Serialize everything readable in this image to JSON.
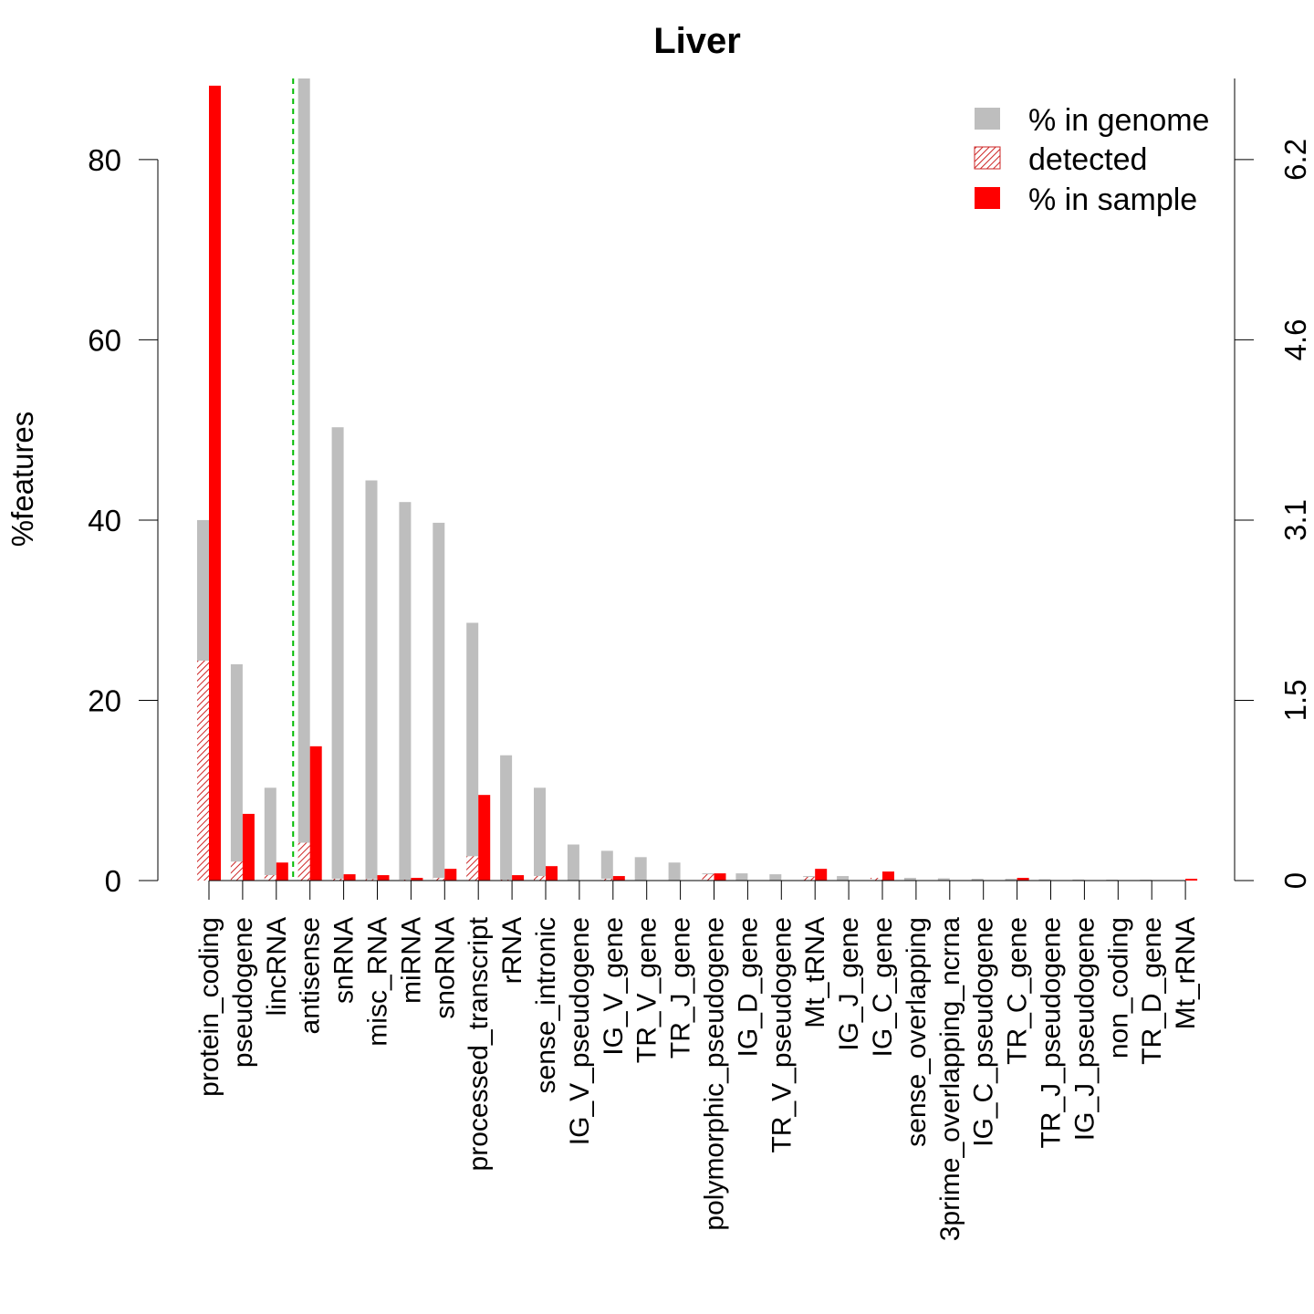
{
  "chart_data": {
    "type": "bar",
    "title": "Liver",
    "ylabel": "%features",
    "y2label": "",
    "xlabel": "",
    "ylim": [
      0,
      89
    ],
    "yticks": [
      0,
      20,
      40,
      60,
      80
    ],
    "y2ticks": [
      "0",
      "1.5",
      "3.1",
      "4.6",
      "6.2"
    ],
    "y2ticks_at_left_values": [
      0,
      20,
      40,
      60,
      80
    ],
    "grid": false,
    "legend_position": "top-right",
    "separator_after_category_index": 2,
    "colors": {
      "genome": "#bebebe",
      "detected": "#cd2626",
      "sample": "#ff0000",
      "separator": "#00bb00"
    },
    "categories": [
      "protein_coding",
      "pseudogene",
      "lincRNA",
      "antisense",
      "snRNA",
      "misc_RNA",
      "miRNA",
      "snoRNA",
      "processed_transcript",
      "rRNA",
      "sense_intronic",
      "IG_V_pseudogene",
      "IG_V_gene",
      "TR_V_gene",
      "TR_J_gene",
      "polymorphic_pseudogene",
      "IG_D_gene",
      "TR_V_pseudogene",
      "Mt_tRNA",
      "IG_J_gene",
      "IG_C_gene",
      "sense_overlapping",
      "3prime_overlapping_ncrna",
      "IG_C_pseudogene",
      "TR_C_gene",
      "TR_J_pseudogene",
      "IG_J_pseudogene",
      "non_coding",
      "TR_D_gene",
      "Mt_rRNA"
    ],
    "series": [
      {
        "name": "% in genome",
        "values": [
          40,
          24,
          10.3,
          89,
          50.3,
          44.4,
          42,
          39.7,
          28.6,
          13.9,
          10.3,
          4,
          3.3,
          2.6,
          2,
          0.8,
          0.8,
          0.7,
          0.5,
          0.5,
          0.3,
          0.3,
          0.25,
          0.2,
          0.2,
          0.15,
          0.12,
          0.1,
          0.1,
          0.05
        ]
      },
      {
        "name": "detected",
        "values": [
          24.4,
          2.1,
          0.6,
          4.2,
          0.2,
          0.15,
          0.1,
          0.3,
          2.7,
          0.1,
          0.5,
          0,
          0.2,
          0,
          0,
          0.7,
          0,
          0,
          0.4,
          0,
          0.3,
          0,
          0,
          0,
          0,
          0,
          0,
          0,
          0,
          0
        ]
      },
      {
        "name": "% in sample",
        "values": [
          88.2,
          7.4,
          2,
          14.9,
          0.7,
          0.6,
          0.3,
          1.3,
          9.5,
          0.6,
          1.6,
          0,
          0.5,
          0,
          0,
          0.8,
          0,
          0,
          1.3,
          0,
          1,
          0,
          0,
          0,
          0.3,
          0,
          0,
          0,
          0,
          0.2
        ]
      }
    ]
  }
}
